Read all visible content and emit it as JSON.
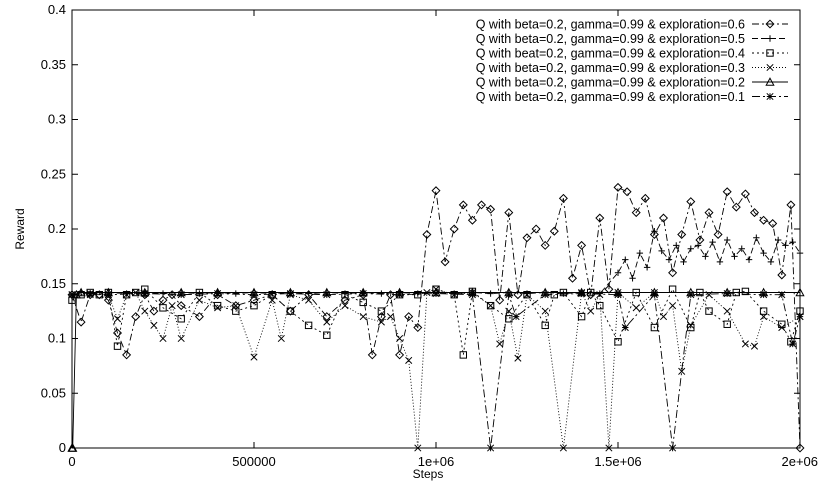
{
  "chart_data": {
    "type": "line",
    "title": "",
    "xlabel": "Steps",
    "ylabel": "Reward",
    "xlim": [
      0,
      2000000
    ],
    "ylim": [
      0,
      0.4
    ],
    "grid": false,
    "legend_position": "top-right",
    "x_ticks": [
      {
        "value": 0,
        "label": "0"
      },
      {
        "value": 500000,
        "label": "500000"
      },
      {
        "value": 1000000,
        "label": "1e+06"
      },
      {
        "value": 1500000,
        "label": "1.5e+06"
      },
      {
        "value": 2000000,
        "label": "2e+06"
      }
    ],
    "y_ticks": [
      {
        "value": 0,
        "label": "0"
      },
      {
        "value": 0.05,
        "label": "0.05"
      },
      {
        "value": 0.1,
        "label": "0.1"
      },
      {
        "value": 0.15,
        "label": "0.15"
      },
      {
        "value": 0.2,
        "label": "0.2"
      },
      {
        "value": 0.25,
        "label": "0.25"
      },
      {
        "value": 0.3,
        "label": "0.3"
      },
      {
        "value": 0.35,
        "label": "0.35"
      },
      {
        "value": 0.4,
        "label": "0.4"
      }
    ],
    "series": [
      {
        "name": "Q with beta=0.2, gamma=0.99 & exploration=0.6",
        "marker": "diamond",
        "dash": "7,3,2,3",
        "x": [
          0,
          25000,
          50000,
          75000,
          100000,
          125000,
          150000,
          175000,
          200000,
          225000,
          250000,
          275000,
          300000,
          350000,
          400000,
          450000,
          500000,
          550000,
          600000,
          650000,
          700000,
          750000,
          800000,
          825000,
          850000,
          875000,
          900000,
          925000,
          950000,
          975000,
          1000000,
          1025000,
          1050000,
          1075000,
          1100000,
          1125000,
          1150000,
          1175000,
          1200000,
          1225000,
          1250000,
          1275000,
          1300000,
          1325000,
          1350000,
          1375000,
          1400000,
          1425000,
          1450000,
          1475000,
          1500000,
          1525000,
          1550000,
          1575000,
          1600000,
          1625000,
          1650000,
          1675000,
          1700000,
          1725000,
          1750000,
          1775000,
          1800000,
          1825000,
          1850000,
          1875000,
          1900000,
          1925000,
          1950000,
          1975000,
          2000000
        ],
        "y": [
          0.14,
          0.115,
          0.14,
          0.14,
          0.135,
          0.105,
          0.085,
          0.12,
          0.14,
          0.125,
          0.135,
          0.14,
          0.13,
          0.12,
          0.14,
          0.13,
          0.135,
          0.14,
          0.125,
          0.14,
          0.12,
          0.135,
          0.14,
          0.085,
          0.12,
          0.14,
          0.085,
          0.12,
          0.11,
          0.195,
          0.235,
          0.17,
          0.2,
          0.222,
          0.208,
          0.222,
          0.218,
          0.135,
          0.215,
          0.14,
          0.192,
          0.2,
          0.185,
          0.198,
          0.228,
          0.155,
          0.185,
          0.14,
          0.21,
          0.145,
          0.238,
          0.234,
          0.215,
          0.228,
          0.195,
          0.21,
          0.16,
          0.195,
          0.225,
          0.19,
          0.215,
          0.195,
          0.234,
          0.22,
          0.232,
          0.215,
          0.208,
          0.205,
          0.158,
          0.222,
          0.0
        ]
      },
      {
        "name": "Q with beta=0.2, gamma=0.99 & exploration=0.5",
        "marker": "plus",
        "dash": "6,3",
        "x": [
          0,
          25000,
          50000,
          100000,
          150000,
          200000,
          250000,
          300000,
          350000,
          400000,
          450000,
          500000,
          550000,
          600000,
          650000,
          700000,
          750000,
          800000,
          850000,
          900000,
          950000,
          1000000,
          1050000,
          1100000,
          1150000,
          1200000,
          1250000,
          1300000,
          1350000,
          1400000,
          1450000,
          1500000,
          1520000,
          1540000,
          1560000,
          1580000,
          1600000,
          1620000,
          1640000,
          1660000,
          1680000,
          1700000,
          1720000,
          1740000,
          1760000,
          1780000,
          1800000,
          1820000,
          1840000,
          1860000,
          1880000,
          1900000,
          1920000,
          1940000,
          1960000,
          1980000,
          2000000
        ],
        "y": [
          0.14,
          0.142,
          0.141,
          0.142,
          0.141,
          0.142,
          0.141,
          0.142,
          0.141,
          0.142,
          0.141,
          0.142,
          0.141,
          0.142,
          0.141,
          0.142,
          0.141,
          0.142,
          0.141,
          0.142,
          0.141,
          0.142,
          0.141,
          0.142,
          0.141,
          0.142,
          0.141,
          0.142,
          0.141,
          0.142,
          0.141,
          0.16,
          0.172,
          0.155,
          0.178,
          0.165,
          0.198,
          0.18,
          0.172,
          0.185,
          0.17,
          0.182,
          0.185,
          0.175,
          0.188,
          0.17,
          0.19,
          0.175,
          0.182,
          0.172,
          0.192,
          0.178,
          0.17,
          0.19,
          0.185,
          0.188,
          0.178
        ]
      },
      {
        "name": "Q with beat=0.2, gamma=0.99 & exploration=0.4",
        "marker": "square",
        "dash": "2,3",
        "x": [
          0,
          25000,
          50000,
          75000,
          100000,
          125000,
          150000,
          175000,
          200000,
          250000,
          300000,
          350000,
          400000,
          450000,
          500000,
          550000,
          600000,
          650000,
          700000,
          750000,
          800000,
          850000,
          900000,
          950000,
          1000000,
          1050000,
          1075000,
          1100000,
          1150000,
          1200000,
          1250000,
          1300000,
          1325000,
          1350000,
          1400000,
          1425000,
          1450000,
          1500000,
          1550000,
          1600000,
          1650000,
          1700000,
          1725000,
          1750000,
          1800000,
          1825000,
          1850000,
          1900000,
          1950000,
          1975000,
          2000000
        ],
        "y": [
          0.135,
          0.14,
          0.142,
          0.14,
          0.142,
          0.093,
          0.14,
          0.142,
          0.145,
          0.128,
          0.118,
          0.142,
          0.13,
          0.125,
          0.13,
          0.14,
          0.125,
          0.112,
          0.103,
          0.14,
          0.133,
          0.125,
          0.14,
          0.14,
          0.145,
          0.14,
          0.085,
          0.143,
          0.13,
          0.118,
          0.14,
          0.112,
          0.14,
          0.142,
          0.12,
          0.142,
          0.13,
          0.097,
          0.142,
          0.11,
          0.145,
          0.11,
          0.142,
          0.125,
          0.113,
          0.142,
          0.143,
          0.125,
          0.113,
          0.097,
          0.125
        ]
      },
      {
        "name": "Q with beta=0.2, gamma=0.99 & exploration=0.3",
        "marker": "cross",
        "dash": "1,2",
        "x": [
          0,
          50000,
          100000,
          125000,
          150000,
          175000,
          200000,
          225000,
          250000,
          275000,
          300000,
          350000,
          400000,
          450000,
          500000,
          550000,
          575000,
          600000,
          650000,
          700000,
          750000,
          800000,
          850000,
          875000,
          900000,
          925000,
          950000,
          975000,
          1000000,
          1050000,
          1100000,
          1150000,
          1175000,
          1200000,
          1225000,
          1250000,
          1300000,
          1350000,
          1400000,
          1425000,
          1450000,
          1475000,
          1500000,
          1550000,
          1600000,
          1625000,
          1650000,
          1675000,
          1700000,
          1750000,
          1800000,
          1850000,
          1875000,
          1900000,
          1950000,
          2000000
        ],
        "y": [
          0.14,
          0.14,
          0.14,
          0.118,
          0.14,
          0.142,
          0.125,
          0.112,
          0.1,
          0.13,
          0.1,
          0.135,
          0.128,
          0.13,
          0.083,
          0.135,
          0.1,
          0.14,
          0.135,
          0.115,
          0.13,
          0.12,
          0.115,
          0.12,
          0.1,
          0.08,
          0.0,
          0.142,
          0.145,
          0.14,
          0.142,
          0.13,
          0.095,
          0.125,
          0.082,
          0.14,
          0.125,
          0.0,
          0.142,
          0.125,
          0.14,
          0.0,
          0.142,
          0.128,
          0.142,
          0.12,
          0.13,
          0.07,
          0.112,
          0.14,
          0.125,
          0.095,
          0.093,
          0.12,
          0.11,
          0.12
        ]
      },
      {
        "name": "Q with beta=0.2, gamma=0.99 & exploration=0.2",
        "marker": "triangle",
        "dash": "",
        "x": [
          0,
          2000,
          12000,
          25000,
          100000,
          200000,
          300000,
          400000,
          500000,
          600000,
          700000,
          800000,
          900000,
          1000000,
          1100000,
          1200000,
          1300000,
          1400000,
          1500000,
          1600000,
          1700000,
          1800000,
          1900000,
          2000000
        ],
        "y": [
          0.0,
          0.0,
          0.14,
          0.142,
          0.142,
          0.142,
          0.142,
          0.142,
          0.142,
          0.142,
          0.142,
          0.142,
          0.142,
          0.142,
          0.142,
          0.142,
          0.142,
          0.142,
          0.142,
          0.142,
          0.142,
          0.142,
          0.142,
          0.142
        ]
      },
      {
        "name": "Q with beta=0.2, gamma=0.99 & exploration=0.1",
        "marker": "star",
        "dash": "8,3,2,3",
        "x": [
          0,
          50000,
          100000,
          200000,
          300000,
          400000,
          500000,
          600000,
          700000,
          800000,
          900000,
          1000000,
          1100000,
          1150000,
          1200000,
          1220000,
          1300000,
          1400000,
          1500000,
          1520000,
          1600000,
          1650000,
          1700000,
          1800000,
          1900000,
          1950000,
          1980000,
          2000000
        ],
        "y": [
          0.14,
          0.141,
          0.14,
          0.141,
          0.14,
          0.141,
          0.14,
          0.141,
          0.14,
          0.141,
          0.14,
          0.141,
          0.14,
          0.0,
          0.14,
          0.12,
          0.14,
          0.141,
          0.14,
          0.11,
          0.14,
          0.0,
          0.14,
          0.141,
          0.14,
          0.14,
          0.095,
          0.12
        ]
      }
    ]
  }
}
